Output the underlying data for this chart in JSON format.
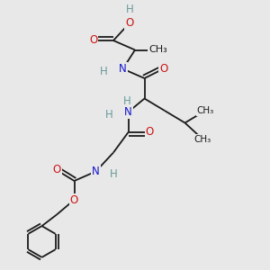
{
  "bg_color": "#e8e8e8",
  "atom_colors": {
    "C": "#1a1a1a",
    "H": "#6a9a9a",
    "N": "#1414cc",
    "O": "#cc1414"
  },
  "bond_color": "#1a1a1a",
  "bond_width": 1.3,
  "font_size": 8.5,
  "fig_width": 3.0,
  "fig_height": 3.0,
  "dpi": 100,
  "xlim": [
    0,
    10
  ],
  "ylim": [
    0,
    10
  ]
}
